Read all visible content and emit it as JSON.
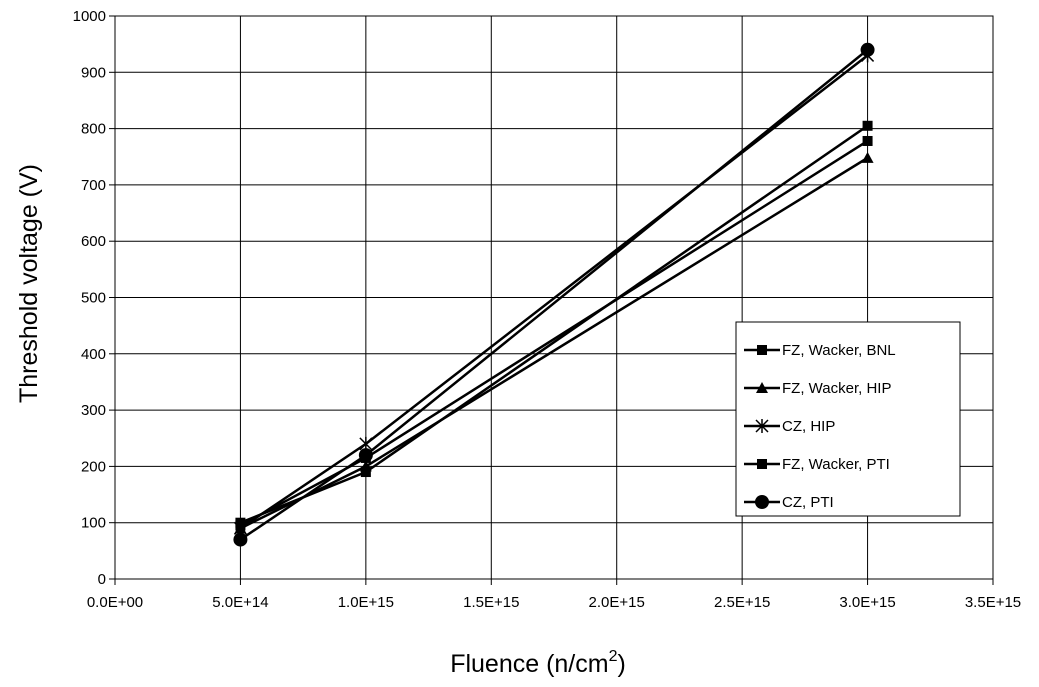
{
  "chart_data": {
    "type": "line",
    "title": "",
    "xlabel": "Fluence (n/cm",
    "xlabel_sup": "2",
    "xlabel_end": ")",
    "ylabel": "Threshold voltage (V)",
    "xlim": [
      0,
      3500000000000000.0
    ],
    "ylim": [
      0,
      1000
    ],
    "x_ticks": [
      "0.0E+00",
      "5.0E+14",
      "1.0E+15",
      "1.5E+15",
      "2.0E+15",
      "2.5E+15",
      "3.0E+15",
      "3.5E+15"
    ],
    "y_ticks": [
      "0",
      "100",
      "200",
      "300",
      "400",
      "500",
      "600",
      "700",
      "800",
      "900",
      "1000"
    ],
    "x_tick_values": [
      0,
      500000000000000.0,
      1000000000000000.0,
      1500000000000000.0,
      2000000000000000.0,
      2500000000000000.0,
      3000000000000000.0,
      3500000000000000.0
    ],
    "y_tick_values": [
      0,
      100,
      200,
      300,
      400,
      500,
      600,
      700,
      800,
      900,
      1000
    ],
    "grid": true,
    "legend_position": "right",
    "series": [
      {
        "name": "FZ, Wacker, BNL",
        "marker": "square",
        "x": [
          500000000000000.0,
          1000000000000000.0,
          3000000000000000.0
        ],
        "y": [
          100,
          190,
          805
        ]
      },
      {
        "name": "FZ, Wacker, HIP",
        "marker": "triangle",
        "x": [
          500000000000000.0,
          1000000000000000.0,
          3000000000000000.0
        ],
        "y": [
          90,
          200,
          748
        ]
      },
      {
        "name": "CZ, HIP",
        "marker": "star",
        "x": [
          500000000000000.0,
          1000000000000000.0,
          3000000000000000.0
        ],
        "y": [
          90,
          240,
          930
        ]
      },
      {
        "name": "FZ, Wacker, PTI",
        "marker": "square",
        "x": [
          500000000000000.0,
          1000000000000000.0,
          3000000000000000.0
        ],
        "y": [
          95,
          215,
          778
        ]
      },
      {
        "name": "CZ, PTI",
        "marker": "circle",
        "x": [
          500000000000000.0,
          1000000000000000.0,
          3000000000000000.0
        ],
        "y": [
          70,
          220,
          940
        ]
      }
    ]
  }
}
